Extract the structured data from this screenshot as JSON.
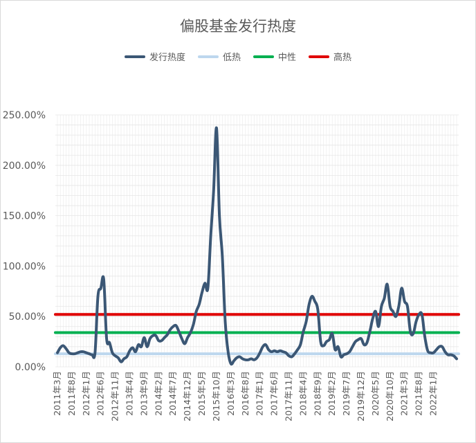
{
  "chart_data": {
    "type": "line",
    "title": "偏股基金发行热度",
    "xlabel": "",
    "ylabel": "",
    "ylim": [
      0,
      250
    ],
    "y_ticks": [
      "0.00%",
      "50.00%",
      "100.00%",
      "150.00%",
      "200.00%",
      "250.00%"
    ],
    "y_tick_values": [
      0,
      50,
      100,
      150,
      200,
      250
    ],
    "grid": true,
    "legend_position": "top",
    "x_tick_labels": [
      "2011年3月",
      "2011年8月",
      "2012年1月",
      "2012年6月",
      "2012年11月",
      "2013年4月",
      "2013年9月",
      "2014年2月",
      "2014年7月",
      "2014年12月",
      "2015年5月",
      "2015年10月",
      "2016年3月",
      "2016年8月",
      "2017年1月",
      "2017年6月",
      "2017年11月",
      "2018年4月",
      "2018年9月",
      "2019年2月",
      "2019年7月",
      "2019年12月",
      "2020年5月",
      "2020年10月",
      "2021年3月",
      "2021年8月",
      "2022年1月"
    ],
    "series": [
      {
        "name": "发行热度",
        "color": "#3b5775",
        "values": [
          14,
          19,
          21,
          18,
          14,
          13,
          13,
          14,
          15,
          15,
          14,
          13,
          12,
          14,
          70,
          78,
          87,
          28,
          24,
          14,
          11,
          9,
          5,
          8,
          10,
          16,
          19,
          15,
          22,
          20,
          29,
          20,
          28,
          31,
          31,
          26,
          26,
          29,
          32,
          37,
          40,
          41,
          35,
          28,
          23,
          29,
          34,
          42,
          55,
          62,
          74,
          83,
          78,
          130,
          175,
          237,
          150,
          110,
          45,
          15,
          3,
          6,
          9,
          10,
          8,
          7,
          7,
          8,
          7,
          9,
          14,
          20,
          22,
          17,
          15,
          16,
          15,
          16,
          15,
          14,
          11,
          10,
          13,
          17,
          22,
          35,
          45,
          62,
          70,
          65,
          57,
          25,
          21,
          25,
          27,
          33,
          17,
          20,
          10,
          12,
          13,
          15,
          20,
          25,
          27,
          28,
          22,
          24,
          35,
          48,
          55,
          40,
          60,
          68,
          82,
          60,
          55,
          50,
          60,
          78,
          65,
          60,
          35,
          33,
          45,
          52,
          52,
          30,
          16,
          14,
          14,
          17,
          20,
          20,
          15,
          12,
          12,
          11,
          8
        ]
      },
      {
        "name": "低热",
        "color": "#bdd7ee",
        "values": [
          13
        ]
      },
      {
        "name": "中性",
        "color": "#00b050",
        "values": [
          34
        ]
      },
      {
        "name": "高热",
        "color": "#e00000",
        "values": [
          52
        ]
      }
    ]
  }
}
